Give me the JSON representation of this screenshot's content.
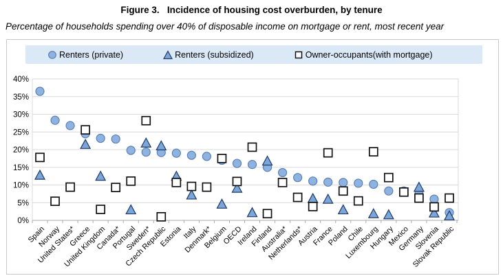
{
  "page": {
    "title": "Figure 3.   Incidence of housing cost overburden, by tenure",
    "subtitle": "Percentage of households spending over 40% of disposable income on mortgage or rent, most recent year"
  },
  "legend": {
    "items": [
      {
        "label": "Renters (private)",
        "marker": "circle"
      },
      {
        "label": "Renters (subsidized)",
        "marker": "triangle"
      },
      {
        "label": "Owner-occupants(with mortgage)",
        "marker": "square"
      }
    ]
  },
  "colors": {
    "legend_bg": "#dbe9f7",
    "circle_fill": "#8fb3e0",
    "circle_stroke": "#5a7fb5",
    "triangle_fill": "#7ba6d9",
    "triangle_stroke": "#1f3864",
    "square_fill": "#ffffff",
    "square_stroke": "#111111",
    "gridline": "#d9d9d9",
    "axis_line": "#aaaaaa",
    "text": "#000000"
  },
  "chart_data": {
    "type": "scatter",
    "title": "Figure 3. Incidence of housing cost overburden, by tenure",
    "subtitle": "Percentage of households spending over 40% of disposable income on mortgage or rent, most recent year",
    "xlabel": "",
    "ylabel": "",
    "ylim": [
      0,
      40
    ],
    "ytick_step": 5,
    "ytick_format": "percent",
    "grid": true,
    "legend_position": "top",
    "categories": [
      "Spain",
      "Norway",
      "United States*",
      "Greece",
      "United Kingdom",
      "Canada*",
      "Portugal",
      "Sweden*",
      "Czech Republic",
      "Estonia",
      "Italy",
      "Denmark*",
      "Belgium",
      "OECD",
      "Ireland",
      "Finland",
      "Australia*",
      "Netherlands*",
      "Austria",
      "France",
      "Poland",
      "Chile",
      "Luxembourg",
      "Hungary",
      "Mexico",
      "Germany",
      "Slovenia",
      "Slovak Republic"
    ],
    "series": [
      {
        "name": "Renters (private)",
        "marker": "circle",
        "values": [
          36.5,
          28.3,
          26.8,
          24.5,
          23.2,
          23.0,
          19.8,
          19.3,
          19.2,
          19.0,
          18.4,
          18.1,
          17.0,
          16.1,
          15.8,
          15.0,
          13.5,
          12.1,
          11.1,
          10.8,
          10.7,
          10.5,
          10.2,
          8.3,
          8.3,
          8.2,
          6.0,
          2.2
        ]
      },
      {
        "name": "Renters (subsidized)",
        "marker": "triangle",
        "values": [
          12.7,
          null,
          null,
          21.4,
          12.4,
          null,
          2.9,
          21.8,
          21.0,
          12.4,
          7.1,
          null,
          4.5,
          9.0,
          2.1,
          16.7,
          null,
          null,
          6.1,
          5.9,
          2.9,
          null,
          1.8,
          1.5,
          null,
          9.3,
          2.0,
          1.2
        ]
      },
      {
        "name": "Owner-occupants(with mortgage)",
        "marker": "square",
        "values": [
          17.8,
          5.4,
          9.4,
          25.6,
          3.1,
          9.3,
          11.1,
          28.2,
          1.0,
          10.7,
          9.6,
          9.4,
          17.5,
          11.0,
          20.7,
          1.9,
          10.7,
          6.5,
          3.9,
          19.1,
          8.3,
          5.5,
          19.4,
          12.1,
          8.0,
          6.3,
          3.8,
          6.3
        ]
      }
    ]
  }
}
